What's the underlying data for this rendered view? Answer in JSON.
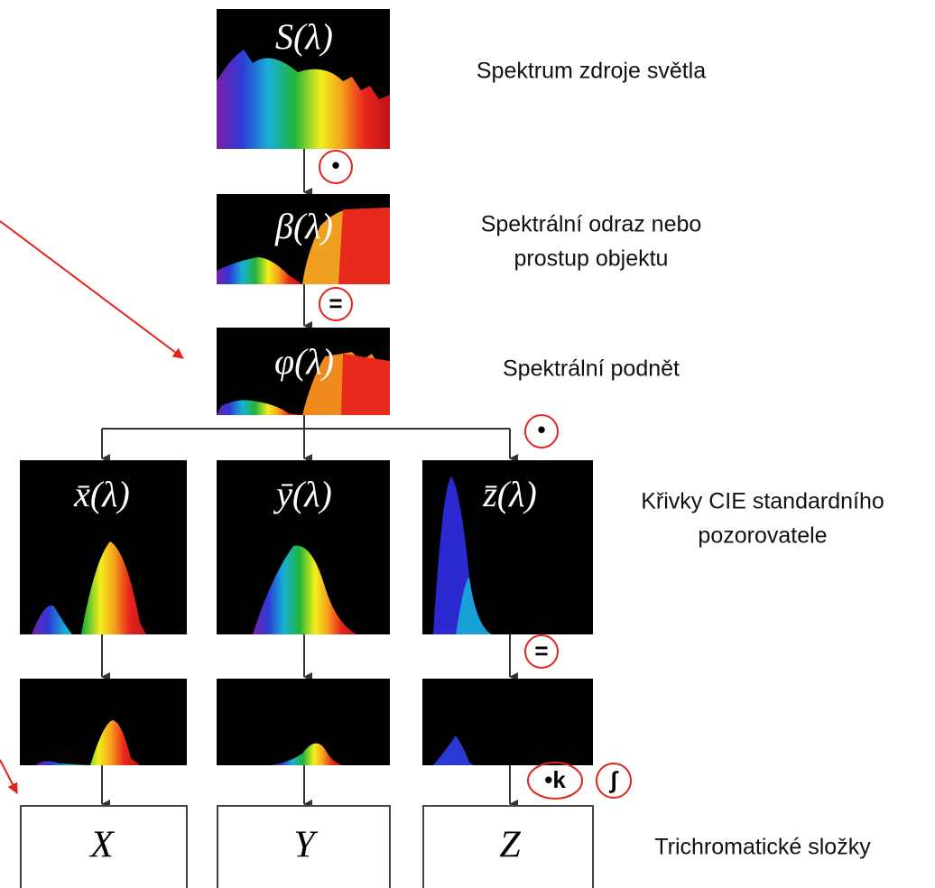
{
  "nodes": [
    {
      "label": "S(λ)"
    },
    {
      "label": "β(λ)"
    },
    {
      "label": "φ(λ)"
    },
    {
      "label": "x̄(λ)"
    },
    {
      "label": "ȳ(λ)"
    },
    {
      "label": "z̄(λ)"
    }
  ],
  "descriptions": [
    {
      "lines": [
        "Spektrum  zdroje světla"
      ]
    },
    {
      "lines": [
        "Spektrální odraz nebo",
        "prostup objektu"
      ]
    },
    {
      "lines": [
        "Spektrální podnět"
      ]
    },
    {
      "lines": [
        "Křivky CIE standardního",
        "pozorovatele"
      ]
    },
    {
      "lines": [
        "Trichromatické složky"
      ]
    }
  ],
  "operators": [
    "•",
    "=",
    "•",
    "=",
    "•k",
    "∫"
  ],
  "outputs": [
    "X",
    "Y",
    "Z"
  ]
}
